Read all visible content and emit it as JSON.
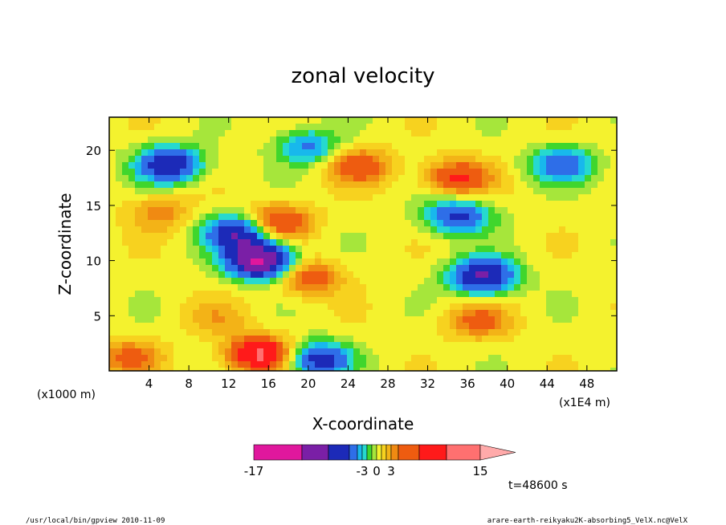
{
  "chart_data": {
    "type": "heatmap",
    "title": "zonal velocity",
    "xlabel": "X-coordinate",
    "ylabel": "Z-coordinate",
    "x_unit_left": "(x1000 m)",
    "x_unit_right": "(x1E4 m)",
    "xlim": [
      0,
      51
    ],
    "ylim": [
      0,
      23
    ],
    "x_ticks": [
      4,
      8,
      12,
      16,
      20,
      24,
      28,
      32,
      36,
      40,
      44,
      48
    ],
    "y_ticks": [
      5,
      10,
      15,
      20
    ],
    "colorbar": {
      "boundaries": [
        -17,
        -13,
        -9,
        -6,
        -4,
        -3,
        -2,
        -1,
        0,
        1,
        2,
        3,
        4,
        6,
        9,
        12,
        15
      ],
      "colors": [
        "#e0179d",
        "#7a1fa6",
        "#1c2ab8",
        "#2e6ee8",
        "#18b8ec",
        "#26d9cf",
        "#3fd62d",
        "#a6e63b",
        "#f4f22e",
        "#f7d21f",
        "#f3b317",
        "#f08a12",
        "#ee5c10",
        "#ff1a1a",
        "#ff7070",
        "#ffaaaa"
      ],
      "tick_labels": [
        "-17",
        "-3",
        "0",
        "3",
        "15"
      ],
      "tick_values": [
        -17,
        -3,
        0,
        3,
        15
      ]
    },
    "field_features": [
      {
        "x": 6,
        "z": 18.7,
        "value": -9
      },
      {
        "x": 12.8,
        "z": 12.5,
        "value": -9
      },
      {
        "x": 20,
        "z": 20.3,
        "value": -5
      },
      {
        "x": 35,
        "z": 14,
        "value": -7
      },
      {
        "x": 37.5,
        "z": 8.6,
        "value": -10
      },
      {
        "x": 45.5,
        "z": 18.7,
        "value": -6
      },
      {
        "x": 21,
        "z": 1,
        "value": -8
      },
      {
        "x": 15.2,
        "z": 10,
        "value": -14
      },
      {
        "x": 15.2,
        "z": 1.5,
        "value": 9
      },
      {
        "x": 17,
        "z": 13.5,
        "value": 6
      },
      {
        "x": 20,
        "z": 8.5,
        "value": 5
      },
      {
        "x": 25,
        "z": 18.6,
        "value": 5
      },
      {
        "x": 35,
        "z": 17.5,
        "value": 6
      },
      {
        "x": 37,
        "z": 4.5,
        "value": 4
      },
      {
        "x": 5,
        "z": 14.3,
        "value": 3
      },
      {
        "x": 2,
        "z": 1.2,
        "value": 4
      },
      {
        "x": 11,
        "z": 4.8,
        "value": 2
      }
    ]
  },
  "time_label": "t=48600 s",
  "footer_left": "/usr/local/bin/gpview  2010-11-09",
  "footer_right": "arare-earth-reikyaku2K-absorbing5_VelX.nc@VelX"
}
